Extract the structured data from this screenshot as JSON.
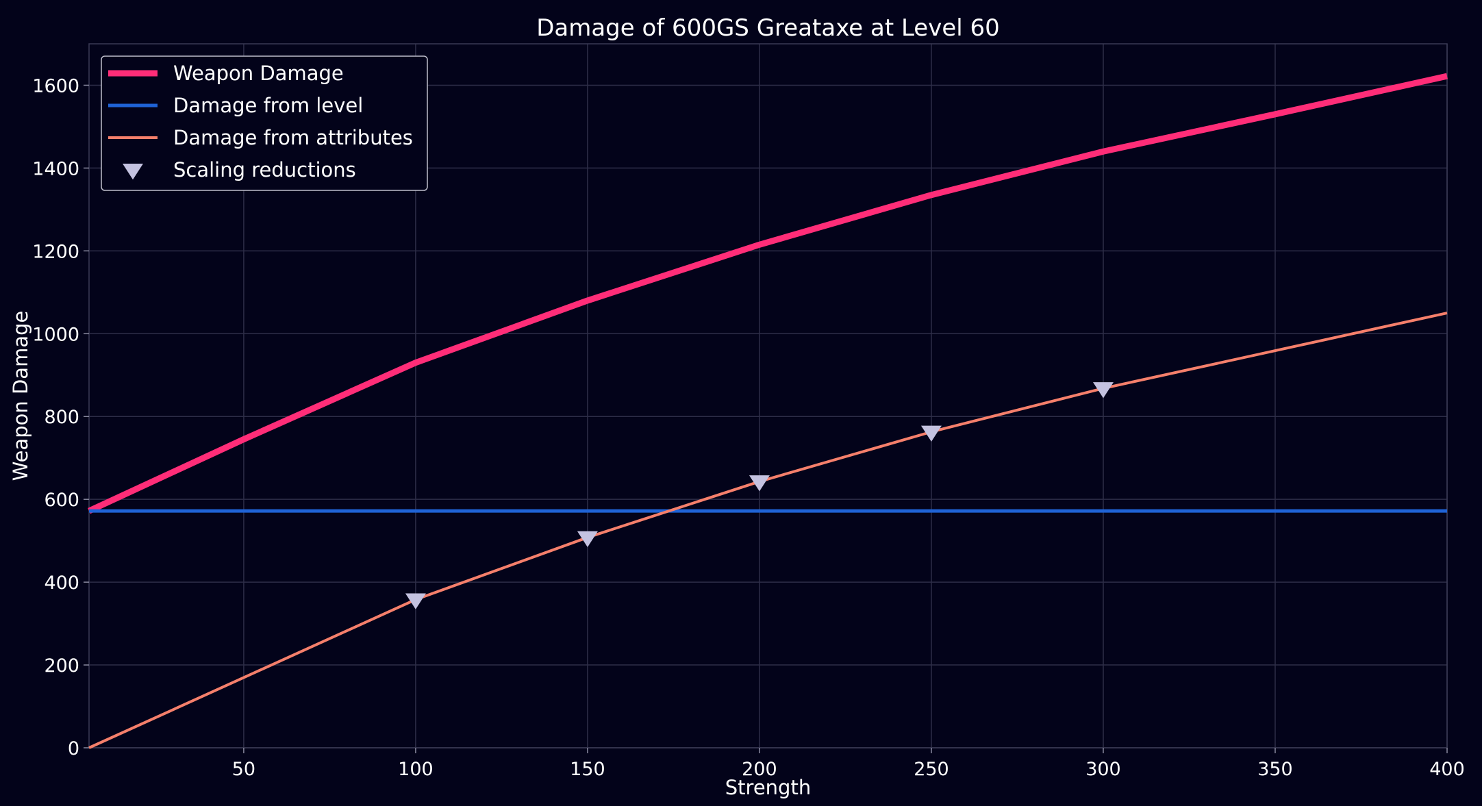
{
  "chart_data": {
    "type": "line",
    "title": "Damage of 600GS Greataxe at Level 60",
    "xlabel": "Strength",
    "ylabel": "Weapon Damage",
    "xlim": [
      5,
      400
    ],
    "ylim": [
      0,
      1700
    ],
    "xticks": [
      50,
      100,
      150,
      200,
      250,
      300,
      350,
      400
    ],
    "yticks": [
      0,
      200,
      400,
      600,
      800,
      1000,
      1200,
      1400,
      1600
    ],
    "grid": true,
    "legend_position": "top-left",
    "series": [
      {
        "name": "Weapon Damage",
        "color": "#ff2d78",
        "kind": "line",
        "x": [
          5,
          50,
          100,
          150,
          200,
          250,
          300,
          350,
          400
        ],
        "y": [
          572,
          745,
          930,
          1080,
          1215,
          1335,
          1440,
          1530,
          1622
        ]
      },
      {
        "name": "Damage from level",
        "color": "#1f63d6",
        "kind": "line",
        "x": [
          5,
          400
        ],
        "y": [
          572,
          572
        ]
      },
      {
        "name": "Damage from attributes",
        "color": "#f57f6b",
        "kind": "line",
        "x": [
          5,
          100,
          150,
          200,
          250,
          300,
          400
        ],
        "y": [
          0,
          358,
          508,
          643,
          763,
          868,
          1050
        ]
      },
      {
        "name": "Scaling reductions",
        "color": "#c4c2e0",
        "kind": "marker",
        "marker": "triangle-down",
        "x": [
          100,
          150,
          200,
          250,
          300
        ],
        "y": [
          358,
          508,
          643,
          763,
          868
        ]
      }
    ]
  }
}
